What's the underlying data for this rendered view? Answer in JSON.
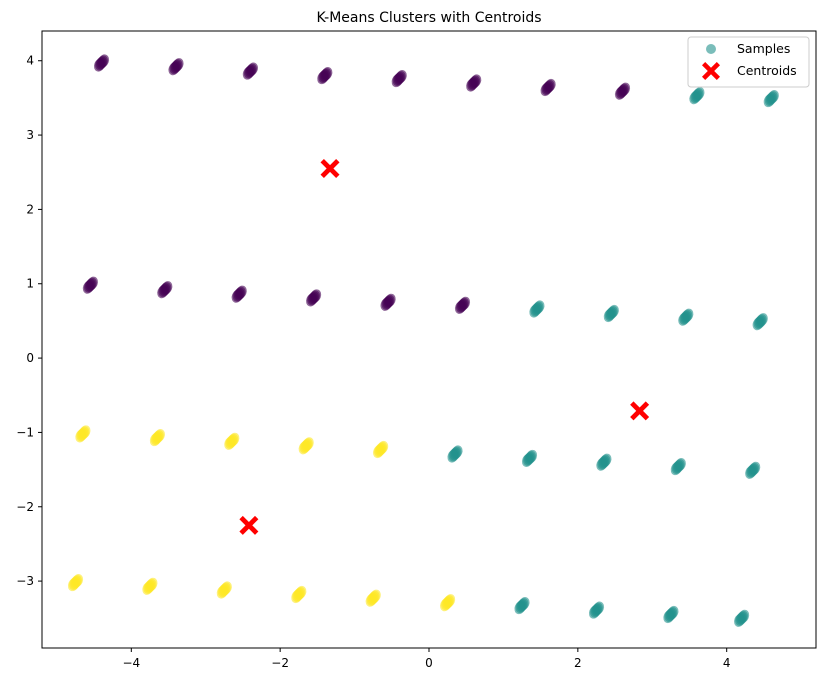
{
  "chart_data": {
    "type": "scatter",
    "title": "K-Means Clusters with Centroids",
    "xlabel": "",
    "ylabel": "",
    "xlim": [
      -5.2,
      5.2
    ],
    "ylim": [
      -3.9,
      4.4
    ],
    "x_ticks": [
      -4,
      -2,
      0,
      2,
      4
    ],
    "y_ticks": [
      -3,
      -2,
      -1,
      0,
      1,
      2,
      3,
      4
    ],
    "x_tick_labels": [
      "−4",
      "−2",
      "0",
      "2",
      "4"
    ],
    "y_tick_labels": [
      "−3",
      "−2",
      "−1",
      "0",
      "1",
      "2",
      "3",
      "4"
    ],
    "grid": false,
    "legend_position": "top-right",
    "legend": [
      {
        "label": "Samples",
        "marker": "circle",
        "color": "#21918c"
      },
      {
        "label": "Centroids",
        "marker": "X",
        "color": "#ff0000"
      }
    ],
    "cluster_colors": [
      "#440154",
      "#21918c",
      "#fde725"
    ],
    "series": [
      {
        "name": "Samples",
        "cluster_index": 0,
        "points": [
          [
            -4.4,
            3.97
          ],
          [
            -3.4,
            3.92
          ],
          [
            -2.4,
            3.86
          ],
          [
            -1.4,
            3.8
          ],
          [
            -0.4,
            3.76
          ],
          [
            0.6,
            3.7
          ],
          [
            1.6,
            3.64
          ],
          [
            2.6,
            3.59
          ],
          [
            -4.55,
            0.98
          ],
          [
            -3.55,
            0.92
          ],
          [
            -2.55,
            0.86
          ],
          [
            -1.55,
            0.81
          ],
          [
            -0.55,
            0.75
          ],
          [
            0.45,
            0.71
          ]
        ]
      },
      {
        "name": "Samples",
        "cluster_index": 1,
        "points": [
          [
            3.6,
            3.53
          ],
          [
            4.6,
            3.49
          ],
          [
            1.45,
            0.66
          ],
          [
            2.45,
            0.6
          ],
          [
            3.45,
            0.55
          ],
          [
            4.45,
            0.49
          ],
          [
            0.35,
            -1.29
          ],
          [
            1.35,
            -1.35
          ],
          [
            2.35,
            -1.4
          ],
          [
            3.35,
            -1.46
          ],
          [
            4.35,
            -1.51
          ],
          [
            1.25,
            -3.33
          ],
          [
            2.25,
            -3.39
          ],
          [
            3.25,
            -3.45
          ],
          [
            4.2,
            -3.5
          ]
        ]
      },
      {
        "name": "Samples",
        "cluster_index": 2,
        "points": [
          [
            -4.65,
            -1.02
          ],
          [
            -3.65,
            -1.07
          ],
          [
            -2.65,
            -1.12
          ],
          [
            -1.65,
            -1.18
          ],
          [
            -0.65,
            -1.23
          ],
          [
            -4.75,
            -3.02
          ],
          [
            -3.75,
            -3.07
          ],
          [
            -2.75,
            -3.12
          ],
          [
            -1.75,
            -3.18
          ],
          [
            -0.75,
            -3.23
          ],
          [
            0.25,
            -3.29
          ]
        ]
      }
    ],
    "centroids": {
      "name": "Centroids",
      "points": [
        [
          -1.33,
          2.55
        ],
        [
          2.83,
          -0.71
        ],
        [
          -2.42,
          -2.25
        ]
      ]
    }
  }
}
